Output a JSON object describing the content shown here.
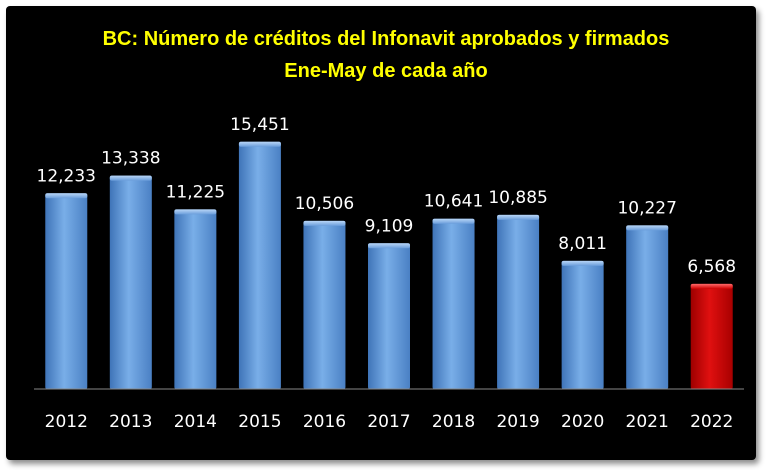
{
  "chart_data": {
    "type": "bar",
    "title": "BC: Número de créditos del Infonavit aprobados  y firmados",
    "subtitle": "Ene-May de cada año",
    "categories": [
      "2012",
      "2013",
      "2014",
      "2015",
      "2016",
      "2017",
      "2018",
      "2019",
      "2020",
      "2021",
      "2022"
    ],
    "values": [
      12233,
      13338,
      11225,
      15451,
      10506,
      9109,
      10641,
      10885,
      8011,
      10227,
      6568
    ],
    "value_labels": [
      "12,233",
      "13,338",
      "11,225",
      "15,451",
      "10,506",
      "9,109",
      "10,641",
      "10,885",
      "8,011",
      "10,227",
      "6,568"
    ],
    "ylim": [
      0,
      20000
    ],
    "grid": false,
    "colors": {
      "background": "#000000",
      "bar": "#5b93d6",
      "highlight_bar": "#cc0000",
      "title": "#ffff00",
      "labels": "#ffffff"
    },
    "highlight_index": 10
  }
}
